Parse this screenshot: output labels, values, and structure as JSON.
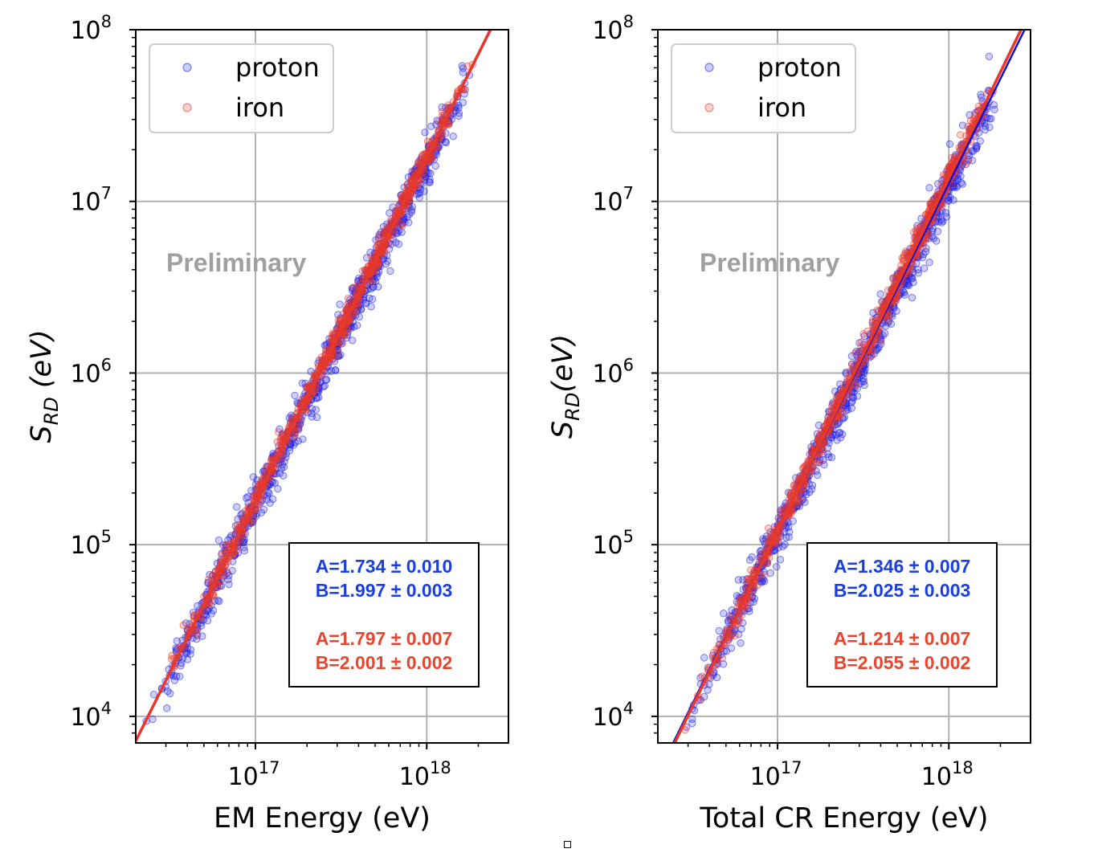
{
  "chart_data": [
    {
      "type": "scatter",
      "xscale": "log",
      "yscale": "log",
      "xlabel": "EM Energy (eV)",
      "ylabel_main": "S",
      "ylabel_sub": "RD",
      "ylabel_rest": " (eV)",
      "xlim": [
        2e+16,
        3e+18
      ],
      "ylim": [
        7000,
        100000000
      ],
      "x_ticks": [
        {
          "base": "10",
          "exp": "17",
          "value": 1e+17
        },
        {
          "base": "10",
          "exp": "18",
          "value": 1e+18
        }
      ],
      "y_ticks": [
        {
          "base": "10",
          "exp": "4",
          "value": 10000.0
        },
        {
          "base": "10",
          "exp": "5",
          "value": 100000.0
        },
        {
          "base": "10",
          "exp": "6",
          "value": 1000000.0
        },
        {
          "base": "10",
          "exp": "7",
          "value": 10000000.0
        },
        {
          "base": "10",
          "exp": "8",
          "value": 100000000.0
        }
      ],
      "grid": true,
      "legend_position": "top-left",
      "watermark": "Preliminary",
      "series": [
        {
          "name": "proton",
          "color": "#1f1fe6",
          "fit_color": "#1010d0",
          "A": 1.734,
          "B": 1.997,
          "x_range": [
            2.1e+16,
            1.9e+18
          ],
          "scatter_sigma": 0.07
        },
        {
          "name": "iron",
          "color": "#e8382a",
          "fit_color": "#e8382a",
          "A": 1.797,
          "B": 2.001,
          "x_range": [
            2.7e+16,
            1.9e+18
          ],
          "scatter_sigma": 0.035
        }
      ],
      "fit_box": {
        "lines": [
          {
            "text": "A=1.734 ± 0.010",
            "color": "#1a3ee6"
          },
          {
            "text": "B=1.997 ± 0.003",
            "color": "#1a3ee6"
          },
          {
            "text": "A=1.797 ± 0.007",
            "color": "#e8452e"
          },
          {
            "text": "B=2.001 ± 0.002",
            "color": "#e8452e"
          }
        ]
      }
    },
    {
      "type": "scatter",
      "xscale": "log",
      "yscale": "log",
      "xlabel": "Total CR Energy (eV)",
      "ylabel_main": "S",
      "ylabel_sub": "RD",
      "ylabel_rest": "(eV)",
      "xlim": [
        2e+16,
        3e+18
      ],
      "ylim": [
        7000,
        100000000
      ],
      "x_ticks": [
        {
          "base": "10",
          "exp": "17",
          "value": 1e+17
        },
        {
          "base": "10",
          "exp": "18",
          "value": 1e+18
        }
      ],
      "y_ticks": [
        {
          "base": "10",
          "exp": "4",
          "value": 10000.0
        },
        {
          "base": "10",
          "exp": "5",
          "value": 100000.0
        },
        {
          "base": "10",
          "exp": "6",
          "value": 1000000.0
        },
        {
          "base": "10",
          "exp": "7",
          "value": 10000000.0
        },
        {
          "base": "10",
          "exp": "8",
          "value": 100000000.0
        }
      ],
      "grid": true,
      "legend_position": "top-left",
      "watermark": "Preliminary",
      "series": [
        {
          "name": "proton",
          "color": "#1f1fe6",
          "fit_color": "#1010d0",
          "A": 1.346,
          "B": 2.025,
          "x_range": [
            2.6e+16,
            2e+18
          ],
          "scatter_sigma": 0.07
        },
        {
          "name": "iron",
          "color": "#e8382a",
          "fit_color": "#e8382a",
          "A": 1.214,
          "B": 2.055,
          "x_range": [
            2.7e+16,
            2e+18
          ],
          "scatter_sigma": 0.04
        }
      ],
      "fit_box": {
        "lines": [
          {
            "text": "A=1.346 ± 0.007",
            "color": "#1a3ee6"
          },
          {
            "text": "B=2.025 ± 0.003",
            "color": "#1a3ee6"
          },
          {
            "text": "A=1.214 ± 0.007",
            "color": "#e8452e"
          },
          {
            "text": "B=2.055 ± 0.002",
            "color": "#e8452e"
          }
        ]
      }
    }
  ]
}
